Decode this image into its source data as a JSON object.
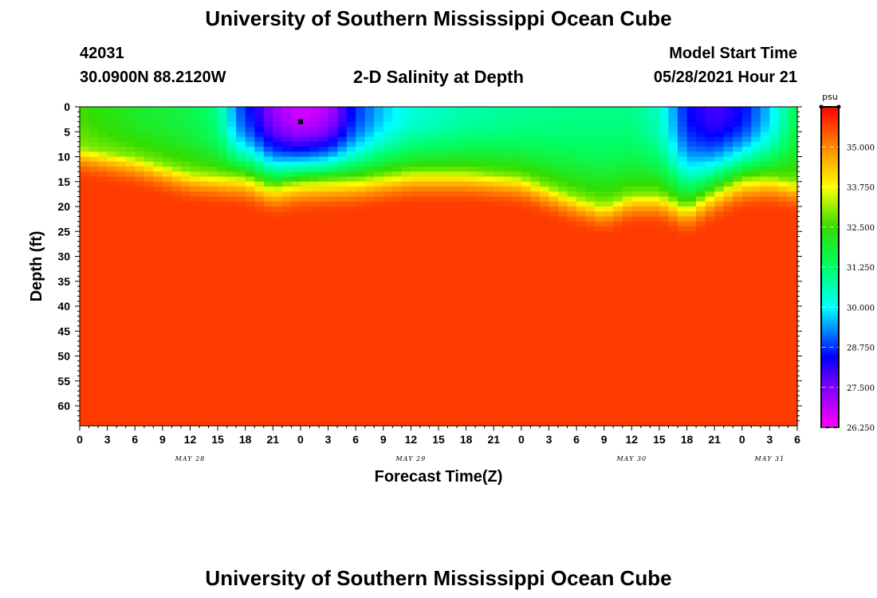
{
  "header": {
    "title": "University of Southern Mississippi Ocean Cube",
    "station_id": "42031",
    "location": "30.0900N  88.2120W",
    "plot_title": "2-D Salinity at Depth",
    "model_start_label": "Model Start Time",
    "model_start_value": "05/28/2021 Hour 21"
  },
  "footer": {
    "title": "University of Southern Mississippi Ocean Cube"
  },
  "chart_data": {
    "type": "heatmap",
    "title": "2-D Salinity at Depth",
    "xlabel": "Forecast Time(Z)",
    "ylabel": "Depth (ft)",
    "colorbar_unit": "psu",
    "x_tick_labels": [
      "0",
      "3",
      "6",
      "9",
      "12",
      "15",
      "18",
      "21",
      "0",
      "3",
      "6",
      "9",
      "12",
      "15",
      "18",
      "21",
      "0",
      "3",
      "6",
      "9",
      "12",
      "15",
      "18",
      "21",
      "0",
      "3",
      "6"
    ],
    "x_range_hours": [
      0,
      78
    ],
    "date_labels": [
      {
        "label": "MAY 28",
        "hour": 12
      },
      {
        "label": "MAY 29",
        "hour": 36
      },
      {
        "label": "MAY 30",
        "hour": 60
      },
      {
        "label": "MAY 31",
        "hour": 75
      }
    ],
    "y_tick_labels": [
      "0",
      "5",
      "10",
      "15",
      "20",
      "25",
      "30",
      "35",
      "40",
      "45",
      "50",
      "55",
      "60"
    ],
    "y_range_ft": [
      0,
      64
    ],
    "y_reversed": true,
    "colorbar_ticks": [
      "35.000",
      "33.750",
      "32.500",
      "31.250",
      "30.000",
      "28.750",
      "27.500",
      "26.250"
    ],
    "colorbar_range_psu": [
      26.25,
      36.25
    ],
    "halocline_depth_ft": [
      [
        0,
        8
      ],
      [
        6,
        10
      ],
      [
        12,
        13
      ],
      [
        18,
        14
      ],
      [
        21,
        16
      ],
      [
        24,
        15
      ],
      [
        30,
        14.5
      ],
      [
        36,
        13
      ],
      [
        42,
        13
      ],
      [
        48,
        14
      ],
      [
        54,
        18
      ],
      [
        57,
        19.5
      ],
      [
        60,
        17.5
      ],
      [
        63,
        17.5
      ],
      [
        66,
        20
      ],
      [
        69,
        17
      ],
      [
        72,
        14.5
      ],
      [
        75,
        14
      ],
      [
        78,
        15
      ]
    ],
    "surface_salinity_psu": [
      [
        0,
        32.6
      ],
      [
        3,
        32.3
      ],
      [
        6,
        32.0
      ],
      [
        9,
        31.8
      ],
      [
        12,
        31.6
      ],
      [
        15,
        31.0
      ],
      [
        17,
        29.2
      ],
      [
        19,
        28.3
      ],
      [
        21,
        27.3
      ],
      [
        24,
        26.6
      ],
      [
        27,
        27.0
      ],
      [
        30,
        28.7
      ],
      [
        33,
        29.7
      ],
      [
        36,
        30.3
      ],
      [
        42,
        30.7
      ],
      [
        48,
        30.9
      ],
      [
        54,
        31.0
      ],
      [
        60,
        31.0
      ],
      [
        63,
        30.5
      ],
      [
        66,
        28.5
      ],
      [
        69,
        27.9
      ],
      [
        72,
        28.4
      ],
      [
        75,
        29.7
      ],
      [
        78,
        31.6
      ]
    ],
    "lower_layer_psu": 35.7,
    "marker": {
      "hour": 24,
      "depth_ft": 3,
      "color": "#000000"
    }
  }
}
